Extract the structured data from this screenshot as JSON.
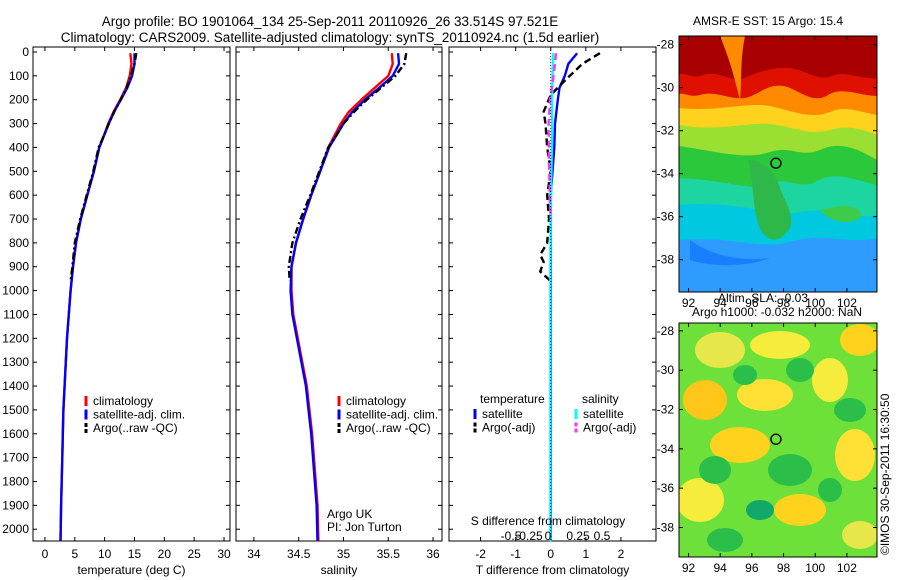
{
  "header": {
    "title_line1": "Argo profile: BO 1901064_134 25-Sep-2011 20110926_26 33.514S 97.521E",
    "title_line2": "Climatology: CARS2009. Satellite-adjusted climatology: synTS_20110924.nc (1.5d earlier)"
  },
  "stamp": "©IMOS 30-Sep-2011 16:30:50",
  "colors": {
    "red": "#ff0000",
    "blue": "#0000ff",
    "cyan": "#00ffff",
    "magenta": "#ff33ff",
    "black": "#000000"
  },
  "chart_data": [
    {
      "type": "line",
      "name": "temperature-profile",
      "xlabel": "temperature (deg C)",
      "ylabel": "",
      "xlim": [
        -2,
        31
      ],
      "ylim": [
        2100,
        0
      ],
      "xticks": [
        0,
        5,
        10,
        15,
        20,
        25,
        30
      ],
      "yticks": [
        0,
        100,
        200,
        300,
        400,
        500,
        600,
        700,
        800,
        900,
        1000,
        1100,
        1200,
        1300,
        1400,
        1500,
        1600,
        1700,
        1800,
        1900,
        2000
      ],
      "legend": [
        "climatology",
        "satellite-adj. clim.",
        "Argo(..raw -QC)"
      ],
      "series": [
        {
          "name": "climatology",
          "color": "red",
          "style": "solid",
          "x": [
            14.3,
            14.5,
            14.2,
            13.6,
            12.6,
            11.5,
            10.6,
            9.9,
            9.1,
            8.2,
            7.1,
            6.0,
            5.2,
            4.7,
            4.3,
            4.0,
            3.7,
            3.5,
            3.3,
            3.1,
            3.0,
            2.9,
            2.8,
            2.7,
            2.6
          ],
          "y": [
            5,
            50,
            100,
            150,
            200,
            250,
            300,
            350,
            400,
            500,
            600,
            700,
            800,
            900,
            1000,
            1100,
            1200,
            1300,
            1400,
            1500,
            1600,
            1700,
            1800,
            1900,
            2050
          ]
        },
        {
          "name": "satellite-adj. clim.",
          "color": "blue",
          "style": "solid",
          "x": [
            15.0,
            15.0,
            14.6,
            13.8,
            12.7,
            11.6,
            10.7,
            9.9,
            9.1,
            8.2,
            7.1,
            6.0,
            5.2,
            4.7,
            4.3,
            4.0,
            3.7,
            3.5,
            3.3,
            3.1,
            3.0,
            2.9,
            2.8,
            2.7,
            2.6
          ],
          "y": [
            5,
            50,
            100,
            150,
            200,
            250,
            300,
            350,
            400,
            500,
            600,
            700,
            800,
            900,
            1000,
            1100,
            1200,
            1300,
            1400,
            1500,
            1600,
            1700,
            1800,
            1900,
            2050
          ]
        },
        {
          "name": "Argo(..raw -QC)",
          "color": "black",
          "style": "dashdot",
          "x": [
            15.3,
            15.0,
            14.4,
            13.7,
            12.7,
            11.6,
            10.7,
            9.9,
            9.0,
            8.1,
            7.0,
            5.9,
            5.0,
            4.6,
            4.3
          ],
          "y": [
            5,
            50,
            100,
            150,
            200,
            250,
            300,
            350,
            400,
            500,
            600,
            700,
            800,
            900,
            960
          ]
        }
      ]
    },
    {
      "type": "line",
      "name": "salinity-profile",
      "xlabel": "salinity",
      "ylabel": "",
      "xlim": [
        33.8,
        36.1
      ],
      "ylim": [
        2100,
        0
      ],
      "xticks": [
        34,
        34.5,
        35,
        35.5,
        36
      ],
      "legend": [
        "climatology",
        "satellite-adj. clim.",
        "Argo(..raw -QC)"
      ],
      "annotation": [
        "Argo UK",
        "PI: Jon Turton"
      ],
      "series": [
        {
          "name": "climatology",
          "color": "red",
          "style": "solid",
          "x": [
            35.54,
            35.55,
            35.5,
            35.35,
            35.2,
            35.06,
            34.97,
            34.9,
            34.83,
            34.74,
            34.64,
            34.55,
            34.47,
            34.42,
            34.42,
            34.44,
            34.49,
            34.54,
            34.59,
            34.62,
            34.65,
            34.67,
            34.69,
            34.71,
            34.72
          ],
          "y": [
            5,
            50,
            100,
            150,
            200,
            250,
            300,
            350,
            400,
            500,
            600,
            700,
            800,
            900,
            1000,
            1100,
            1200,
            1300,
            1400,
            1500,
            1600,
            1700,
            1800,
            1900,
            2050
          ]
        },
        {
          "name": "satellite-adj. clim.",
          "color": "blue",
          "style": "solid",
          "x": [
            35.61,
            35.62,
            35.55,
            35.4,
            35.24,
            35.1,
            35.0,
            34.92,
            34.84,
            34.74,
            34.64,
            34.55,
            34.47,
            34.42,
            34.41,
            34.43,
            34.48,
            34.53,
            34.58,
            34.61,
            34.64,
            34.66,
            34.68,
            34.7,
            34.71
          ],
          "y": [
            5,
            50,
            100,
            150,
            200,
            250,
            300,
            350,
            400,
            500,
            600,
            700,
            800,
            900,
            1000,
            1100,
            1200,
            1300,
            1400,
            1500,
            1600,
            1700,
            1800,
            1900,
            2050
          ]
        },
        {
          "name": "Argo(..raw -QC)",
          "color": "black",
          "style": "dashdot",
          "x": [
            35.7,
            35.68,
            35.58,
            35.42,
            35.26,
            35.12,
            35.0,
            34.92,
            34.83,
            34.73,
            34.63,
            34.52,
            34.43,
            34.39,
            34.4
          ],
          "y": [
            5,
            50,
            100,
            150,
            200,
            250,
            300,
            350,
            400,
            500,
            600,
            700,
            800,
            900,
            960
          ]
        }
      ]
    },
    {
      "type": "line",
      "name": "difference-profile",
      "xlabel": "T difference from climatology",
      "ylabel": "",
      "top_label": "S difference from climatology",
      "xlim": [
        -2.9,
        3.0
      ],
      "ylim": [
        2100,
        0
      ],
      "xticks": [
        -2,
        -1,
        0,
        1,
        2
      ],
      "top_ticks": [
        "-0.5",
        "-0.25",
        "0",
        "0.25",
        "0.5"
      ],
      "legend_temperature": {
        "heading": "temperature",
        "items": [
          "satellite",
          "Argo(-adj)"
        ]
      },
      "legend_salinity": {
        "heading": "salinity",
        "items": [
          "satellite",
          "Argo(-adj)"
        ]
      },
      "series": [
        {
          "name": "T satellite",
          "color": "blue",
          "style": "solid",
          "x": [
            0.75,
            0.5,
            0.4,
            0.25,
            0.2,
            0.12,
            0.1,
            0.05,
            0.0,
            0.0,
            0.0,
            0.0,
            0.0,
            0.0,
            0.0,
            0.0,
            0.0
          ],
          "y": [
            5,
            50,
            100,
            150,
            200,
            300,
            400,
            500,
            600,
            800,
            1000,
            1200,
            1400,
            1600,
            1800,
            1900,
            2050
          ]
        },
        {
          "name": "T Argo(-adj)",
          "color": "black",
          "style": "dashed",
          "x": [
            1.4,
            0.9,
            0.4,
            0.0,
            -0.2,
            -0.15,
            -0.1,
            0.0,
            -0.1,
            -0.05,
            -0.1,
            -0.3,
            -0.2,
            -0.3,
            0.0
          ],
          "y": [
            5,
            50,
            120,
            180,
            250,
            300,
            400,
            500,
            600,
            700,
            800,
            850,
            880,
            920,
            960
          ]
        },
        {
          "name": "S satellite",
          "color": "cyan",
          "style": "solid",
          "x": [
            0.07,
            0.06,
            0.05,
            0.04,
            0.04,
            0.03,
            0.02,
            0.01,
            0.0,
            -0.01,
            -0.01,
            -0.01,
            -0.01,
            -0.01,
            -0.01,
            -0.01
          ],
          "y": [
            5,
            50,
            100,
            200,
            300,
            400,
            500,
            600,
            700,
            900,
            1100,
            1300,
            1500,
            1700,
            1900,
            2050
          ]
        },
        {
          "name": "S Argo(-adj)",
          "color": "magenta",
          "style": "dashed",
          "x": [
            0.15,
            0.12,
            0.06,
            -0.02,
            -0.06,
            -0.05,
            -0.03,
            0.0
          ],
          "y": [
            5,
            50,
            120,
            200,
            300,
            450,
            600,
            700
          ]
        }
      ]
    },
    {
      "type": "heatmap",
      "name": "sst-map",
      "title": "AMSR-E SST: 15 Argo: 15.4",
      "xticks": [
        92,
        94,
        96,
        98,
        100,
        102
      ],
      "yticks": [
        -28,
        -30,
        -32,
        -34,
        -36,
        -38
      ],
      "xlim": [
        91.4,
        103.9
      ],
      "ylim": [
        -39.5,
        -27.6
      ],
      "float_position": {
        "lon": 97.52,
        "lat": -33.51
      }
    },
    {
      "type": "heatmap",
      "name": "sla-map",
      "title_line1": "Altim. SLA: -0.03",
      "title_line2": "Argo h1000: -0.032 h2000: NaN",
      "xticks": [
        92,
        94,
        96,
        98,
        100,
        102
      ],
      "yticks": [
        -28,
        -30,
        -32,
        -34,
        -36,
        -38
      ],
      "xlim": [
        91.4,
        103.9
      ],
      "ylim": [
        -39.5,
        -27.6
      ],
      "float_position": {
        "lon": 97.52,
        "lat": -33.51
      }
    }
  ]
}
